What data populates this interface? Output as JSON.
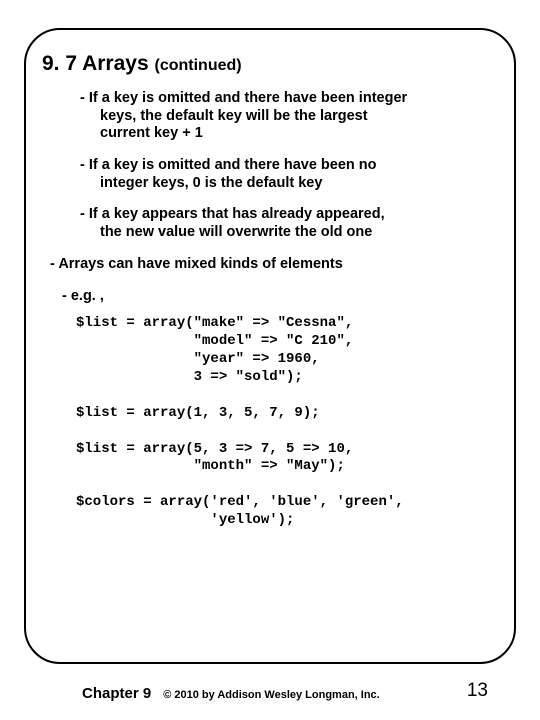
{
  "heading": {
    "num": "9. 7",
    "title": "Arrays",
    "cont": "(continued)"
  },
  "bullets": {
    "p1a": "- If a key is omitted and there have been integer",
    "p1b": "keys, the default key will be the largest",
    "p1c": "current key + 1",
    "p2a": "- If a key is omitted and there have been no",
    "p2b": "integer keys, 0 is the default key",
    "p3a": "- If a key appears that has already appeared,",
    "p3b": "the new value will overwrite the old one",
    "p4": "- Arrays can have mixed kinds of elements",
    "p5": "- e.g. ,"
  },
  "code": "$list = array(\"make\" => \"Cessna\",\n              \"model\" => \"C 210\",\n              \"year\" => 1960,\n              3 => \"sold\");\n\n$list = array(1, 3, 5, 7, 9);\n\n$list = array(5, 3 => 7, 5 => 10,\n              \"month\" => \"May\");\n\n$colors = array('red', 'blue', 'green',\n                'yellow');",
  "footer": {
    "chapter": "Chapter 9",
    "copyright": "© 2010 by Addison Wesley Longman, Inc.",
    "page": "13"
  },
  "colors": {
    "text": "#000000",
    "bg": "#ffffff",
    "border": "#000000"
  }
}
